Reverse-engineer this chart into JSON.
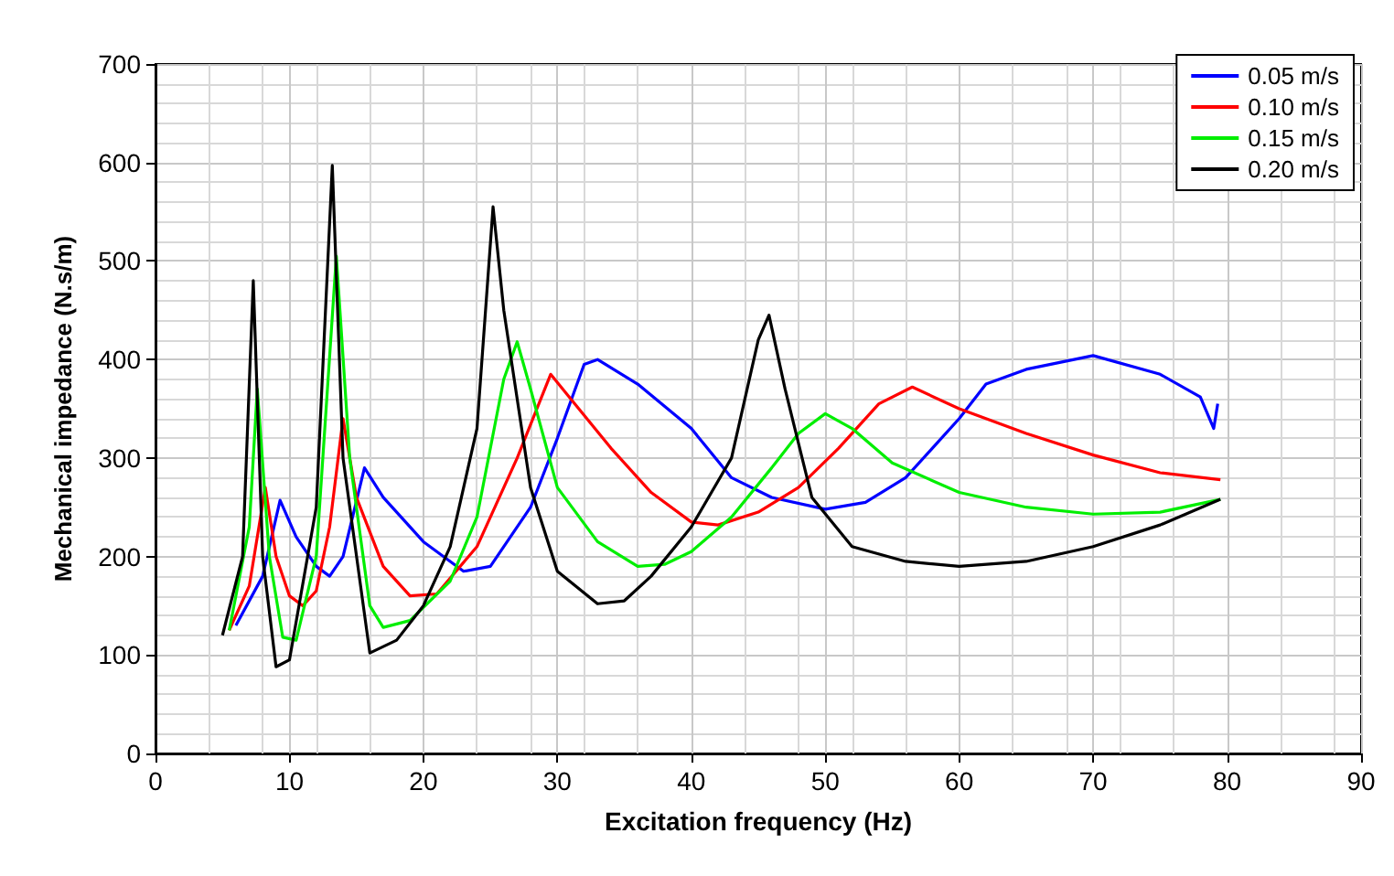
{
  "chart_data": {
    "type": "line",
    "xlabel": "Excitation frequency (Hz)",
    "ylabel": "Mechanical impedance (N.s/m)",
    "xlim": [
      0,
      90
    ],
    "xticks": [
      0,
      10,
      20,
      30,
      40,
      50,
      60,
      70,
      80,
      90
    ],
    "ylim": [
      0,
      700
    ],
    "yticks": [
      0,
      100,
      200,
      300,
      400,
      500,
      600,
      700
    ],
    "grid": true,
    "legend": "top right",
    "marker": "none",
    "line_style": "solid",
    "series": [
      {
        "name": "0.05 m/s",
        "color": "#0000ff",
        "x": [
          6,
          8,
          9.3,
          10.5,
          12,
          13,
          14,
          15.6,
          17,
          20,
          23,
          25,
          28,
          30,
          32,
          33,
          36,
          40,
          43,
          46,
          50,
          53,
          56,
          58,
          60,
          62,
          65,
          70,
          75,
          78,
          79,
          79.3
        ],
        "values": [
          130,
          180,
          257,
          220,
          190,
          180,
          200,
          290,
          260,
          215,
          185,
          190,
          250,
          320,
          395,
          400,
          375,
          330,
          280,
          260,
          248,
          255,
          280,
          310,
          340,
          375,
          390,
          404,
          385,
          362,
          330,
          355
        ]
      },
      {
        "name": "0.10 m/s",
        "color": "#ff0000",
        "x": [
          5.5,
          7,
          8.2,
          9,
          10,
          11,
          12,
          13,
          14,
          15,
          17,
          19,
          21,
          24,
          27,
          29.5,
          31,
          34,
          37,
          40,
          42,
          45,
          48,
          51,
          54,
          56.5,
          60,
          65,
          70,
          75,
          79.5
        ],
        "values": [
          125,
          170,
          270,
          200,
          160,
          150,
          165,
          230,
          340,
          260,
          190,
          160,
          162,
          210,
          300,
          385,
          360,
          310,
          265,
          235,
          232,
          245,
          270,
          310,
          355,
          372,
          350,
          325,
          303,
          285,
          278
        ]
      },
      {
        "name": "0.15 m/s",
        "color": "#00ee00",
        "x": [
          5.5,
          7,
          7.6,
          8.5,
          9.5,
          10.5,
          12,
          13.5,
          14.5,
          16,
          17,
          19,
          22,
          24,
          26,
          27,
          28,
          30,
          33,
          36,
          38,
          40,
          43,
          46,
          48,
          50,
          52,
          55,
          60,
          65,
          70,
          75,
          79.5
        ],
        "values": [
          125,
          230,
          370,
          200,
          118,
          115,
          200,
          505,
          300,
          150,
          128,
          135,
          175,
          240,
          380,
          418,
          370,
          270,
          215,
          190,
          192,
          205,
          240,
          290,
          325,
          345,
          330,
          295,
          265,
          250,
          243,
          245,
          258
        ]
      },
      {
        "name": "0.20 m/s",
        "color": "#000000",
        "x": [
          5,
          6.5,
          7.3,
          8,
          9,
          10,
          12,
          13.2,
          14,
          16,
          18,
          20,
          22,
          24,
          25.2,
          26,
          28,
          30,
          33,
          35,
          37,
          40,
          43,
          45,
          45.8,
          47,
          49,
          52,
          56,
          60,
          65,
          70,
          75,
          79.5
        ],
        "values": [
          120,
          200,
          480,
          200,
          88,
          95,
          250,
          597,
          300,
          102,
          115,
          150,
          210,
          330,
          555,
          450,
          270,
          185,
          152,
          155,
          180,
          230,
          300,
          420,
          445,
          370,
          260,
          210,
          195,
          190,
          195,
          210,
          232,
          258
        ]
      }
    ]
  }
}
